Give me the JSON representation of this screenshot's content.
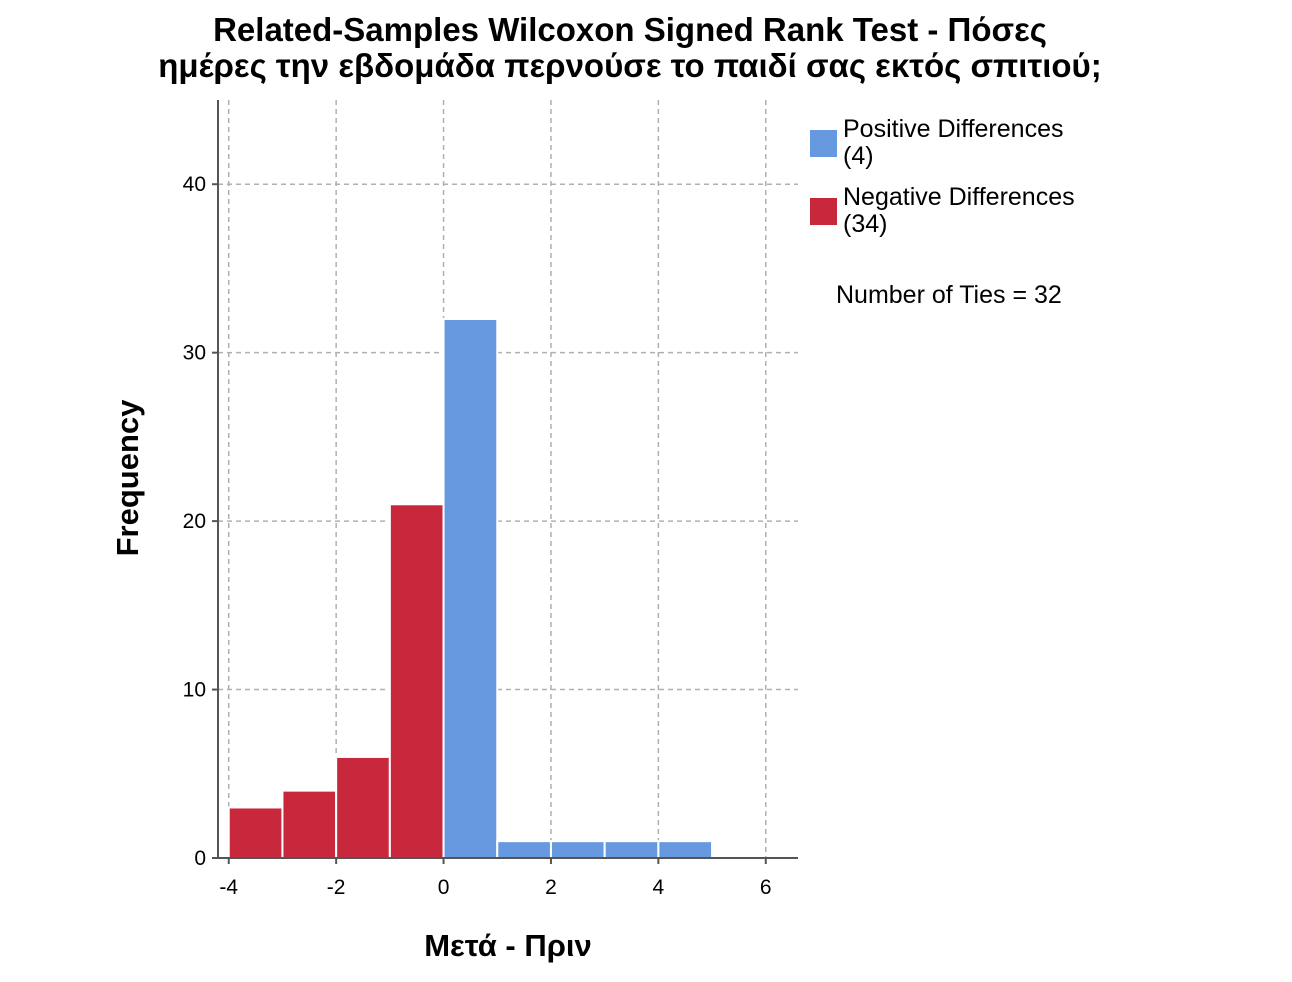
{
  "chart_data": {
    "type": "bar",
    "title_lines": [
      "Related-Samples Wilcoxon Signed Rank Test - Πόσες",
      "ημέρες την εβδομάδα περνούσε το παιδί σας εκτός σπιτιού;"
    ],
    "xlabel": "Μετά - Πριν",
    "ylabel": "Frequency",
    "xlim": [
      -4.2,
      6.6
    ],
    "ylim": [
      0,
      45
    ],
    "xticks": [
      -4,
      -2,
      0,
      2,
      4,
      6
    ],
    "yticks": [
      0,
      10,
      20,
      30,
      40
    ],
    "grid": true,
    "legend_position": "right",
    "bin_width": 1,
    "bars": [
      {
        "x_start": -4,
        "x_end": -3,
        "value": 3,
        "series": "negative"
      },
      {
        "x_start": -3,
        "x_end": -2,
        "value": 4,
        "series": "negative"
      },
      {
        "x_start": -2,
        "x_end": -1,
        "value": 6,
        "series": "negative"
      },
      {
        "x_start": -1,
        "x_end": 0,
        "value": 21,
        "series": "negative"
      },
      {
        "x_start": 0,
        "x_end": 1,
        "value": 32,
        "series": "positive"
      },
      {
        "x_start": 1,
        "x_end": 2,
        "value": 1,
        "series": "positive"
      },
      {
        "x_start": 2,
        "x_end": 3,
        "value": 1,
        "series": "positive"
      },
      {
        "x_start": 3,
        "x_end": 4,
        "value": 1,
        "series": "positive"
      },
      {
        "x_start": 4,
        "x_end": 5,
        "value": 1,
        "series": "positive"
      }
    ],
    "series": [
      {
        "key": "positive",
        "name": "Positive Differences",
        "count_label": "(4)",
        "color": "#6699E0"
      },
      {
        "key": "negative",
        "name": "Negative Differences",
        "count_label": "(34)",
        "color": "#C9283C"
      }
    ],
    "annotation": "Number of Ties = 32"
  }
}
